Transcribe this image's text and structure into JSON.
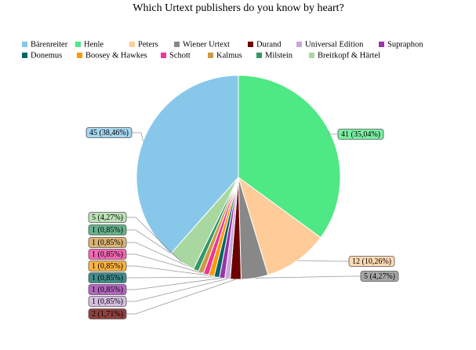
{
  "chart_data": {
    "type": "pie",
    "title": "Which Urtext publishers do you know by heart?",
    "categories": [
      "Bärenreiter",
      "Henle",
      "Peters",
      "Wiener Urtext",
      "Durand",
      "Universal Edition",
      "Supraphon",
      "Donemus",
      "Boosey & Hawkes",
      "Schott",
      "Kalmus",
      "Milstein",
      "Breitkopf & Härtel"
    ],
    "values": [
      45,
      41,
      12,
      5,
      2,
      1,
      1,
      1,
      1,
      1,
      1,
      1,
      5
    ],
    "value_labels": [
      "45 (38,46%)",
      "41 (35,04%)",
      "12 (10,26%)",
      "5 (4,27%)",
      "2 (1,71%)",
      "1 (0,85%)",
      "1 (0,85%)",
      "1 (0,85%)",
      "1 (0,85%)",
      "1 (0,85%)",
      "1 (0,85%)",
      "1 (0,85%)",
      "5 (4,27%)"
    ],
    "colors": [
      "#87c8ea",
      "#4ee884",
      "#ffcc99",
      "#888888",
      "#6b0000",
      "#c8a8d8",
      "#9933aa",
      "#006666",
      "#ff9900",
      "#ee3399",
      "#cc9944",
      "#339966",
      "#a8d8a0"
    ]
  }
}
